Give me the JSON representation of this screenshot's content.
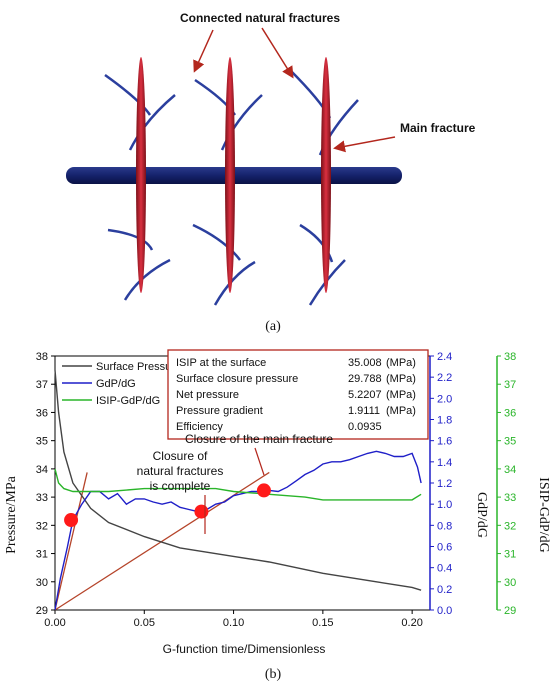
{
  "figure_a": {
    "callout_natural": "Connected natural fractures",
    "callout_main": "Main fracture",
    "panel_label": "(a)",
    "colors": {
      "wellbore": "#15226b",
      "fracture": "#c0232e",
      "natural": "#2b3f9e",
      "arrow": "#b3271d"
    }
  },
  "figure_b": {
    "panel_label": "(b)",
    "info_box": [
      {
        "label": "ISIP at the surface",
        "value": "35.008",
        "unit": "(MPa)"
      },
      {
        "label": "Surface closure pressure",
        "value": "29.788",
        "unit": "(MPa)"
      },
      {
        "label": "Net pressure",
        "value": "5.2207",
        "unit": "(MPa)"
      },
      {
        "label": "Pressure gradient",
        "value": "1.9111",
        "unit": "(MPa)"
      },
      {
        "label": "Efficiency",
        "value": "0.0935",
        "unit": ""
      }
    ],
    "annotations": {
      "main_closure": "Closure of the main fracture",
      "natural_closure_1": "Closure of",
      "natural_closure_2": "natural fractures",
      "natural_closure_3": "is complete"
    }
  },
  "chart_data": {
    "type": "line",
    "xlabel": "G-function time/Dimensionless",
    "ylabel_left": "Pressure/MPa",
    "ylabel_right1": "GdP/dG",
    "ylabel_right2": "ISIP-GdP/dG",
    "xlim": [
      0,
      0.21
    ],
    "x_ticks": [
      "0.00",
      "0.05",
      "0.10",
      "0.15",
      "0.20"
    ],
    "x_tick_values": [
      0,
      0.05,
      0.1,
      0.15,
      0.2
    ],
    "ylim_left": [
      29,
      38
    ],
    "ylim_right1": [
      0,
      2.4
    ],
    "ylim_right2": [
      29,
      38
    ],
    "y_left_ticks": [
      "29",
      "30",
      "31",
      "32",
      "33",
      "34",
      "35",
      "36",
      "37",
      "38"
    ],
    "y_right1_ticks": [
      "0.0",
      "0.2",
      "0.4",
      "0.6",
      "0.8",
      "1.0",
      "1.2",
      "1.4",
      "1.6",
      "1.8",
      "2.0",
      "2.2",
      "2.4"
    ],
    "y_right2_ticks": [
      "29",
      "30",
      "31",
      "32",
      "33",
      "34",
      "35",
      "36",
      "37",
      "38"
    ],
    "legend": [
      "Surface Pressure",
      "GdP/dG",
      "ISIP-GdP/dG"
    ],
    "legend_placement": "top-left",
    "colors": {
      "surface": "#444444",
      "gdp": "#1f1fc8",
      "isip": "#2ab52a",
      "tangent": "#b5442a",
      "marker": "#ff1a1a",
      "axis_right1": "#1f1fc8",
      "axis_right2": "#2ab52a"
    },
    "series": [
      {
        "name": "Surface Pressure",
        "axis": "left",
        "x": [
          0,
          0.002,
          0.005,
          0.01,
          0.02,
          0.03,
          0.05,
          0.07,
          0.1,
          0.12,
          0.15,
          0.18,
          0.2,
          0.205
        ],
        "y": [
          37.5,
          36.0,
          34.6,
          33.5,
          32.6,
          32.1,
          31.6,
          31.2,
          30.9,
          30.7,
          30.3,
          30.0,
          29.8,
          29.7
        ]
      },
      {
        "name": "GdP/dG",
        "axis": "right1",
        "x": [
          0,
          0.003,
          0.007,
          0.01,
          0.015,
          0.02,
          0.025,
          0.03,
          0.035,
          0.04,
          0.045,
          0.05,
          0.055,
          0.06,
          0.065,
          0.07,
          0.075,
          0.08,
          0.085,
          0.09,
          0.095,
          0.1,
          0.105,
          0.11,
          0.115,
          0.12,
          0.125,
          0.13,
          0.135,
          0.14,
          0.145,
          0.15,
          0.155,
          0.16,
          0.165,
          0.17,
          0.175,
          0.18,
          0.185,
          0.19,
          0.195,
          0.2,
          0.203,
          0.205
        ],
        "y": [
          0.0,
          0.3,
          0.6,
          0.85,
          1.0,
          1.12,
          1.12,
          1.05,
          1.1,
          1.0,
          1.05,
          1.05,
          1.02,
          1.0,
          1.02,
          0.97,
          0.95,
          0.93,
          0.95,
          1.0,
          1.02,
          1.08,
          1.1,
          1.12,
          1.12,
          1.13,
          1.12,
          1.16,
          1.22,
          1.28,
          1.32,
          1.38,
          1.4,
          1.4,
          1.42,
          1.45,
          1.48,
          1.5,
          1.48,
          1.45,
          1.45,
          1.48,
          1.35,
          1.2
        ]
      },
      {
        "name": "ISIP-GdP/dG",
        "axis": "right2",
        "x": [
          0,
          0.002,
          0.005,
          0.01,
          0.015,
          0.02,
          0.03,
          0.05,
          0.07,
          0.09,
          0.1,
          0.12,
          0.14,
          0.15,
          0.17,
          0.19,
          0.2,
          0.205
        ],
        "y": [
          34.0,
          33.5,
          33.3,
          33.2,
          33.2,
          33.2,
          33.2,
          33.3,
          33.3,
          33.3,
          33.2,
          33.1,
          33.0,
          32.9,
          32.9,
          32.9,
          32.9,
          33.1
        ]
      }
    ],
    "tangent_lines": [
      {
        "axis": "right1",
        "x": [
          0,
          0.12
        ],
        "y": [
          0.0,
          1.3
        ]
      },
      {
        "axis": "right1",
        "x": [
          0,
          0.018
        ],
        "y": [
          0.0,
          1.3
        ]
      }
    ],
    "markers": [
      {
        "axis": "right1",
        "x": 0.009,
        "y": 0.85
      },
      {
        "axis": "right1",
        "x": 0.082,
        "y": 0.93
      },
      {
        "axis": "right1",
        "x": 0.117,
        "y": 1.13
      }
    ]
  }
}
